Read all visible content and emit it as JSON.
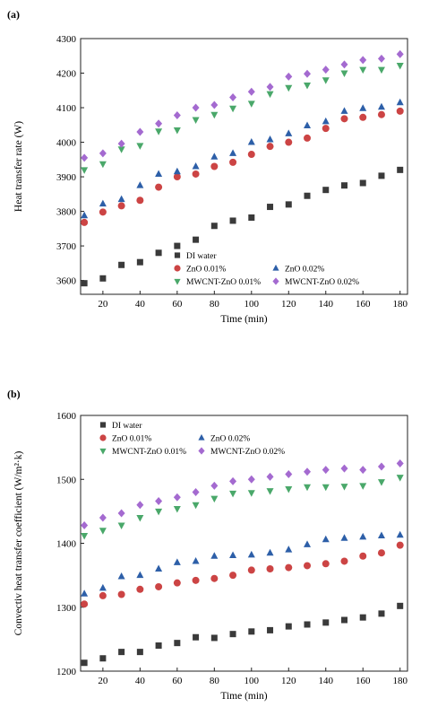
{
  "chart_data": [
    {
      "type": "scatter",
      "panel_label": "(a)",
      "xlabel": "Time (min)",
      "ylabel": "Heat transfer rate (W)",
      "xlim": [
        8,
        184
      ],
      "ylim": [
        3560,
        4300
      ],
      "xticks": [
        20,
        40,
        60,
        80,
        100,
        120,
        140,
        160,
        180
      ],
      "yticks": [
        3600,
        3700,
        3800,
        3900,
        4000,
        4100,
        4200,
        4300
      ],
      "legend_position": "bottom-right",
      "x": [
        10,
        20,
        30,
        40,
        50,
        60,
        70,
        80,
        90,
        100,
        110,
        120,
        130,
        140,
        150,
        160,
        170,
        180
      ],
      "series": [
        {
          "name": "DI water",
          "marker": "square",
          "color": "#3a3a3a",
          "values": [
            3592,
            3606,
            3645,
            3653,
            3680,
            3700,
            3718,
            3758,
            3773,
            3782,
            3813,
            3820,
            3845,
            3862,
            3875,
            3882,
            3903,
            3920
          ]
        },
        {
          "name": "ZnO 0.01%",
          "marker": "circle",
          "color": "#cc4444",
          "values": [
            3768,
            3798,
            3816,
            3832,
            3870,
            3900,
            3908,
            3930,
            3942,
            3965,
            3988,
            4000,
            4012,
            4040,
            4068,
            4072,
            4080,
            4090
          ]
        },
        {
          "name": "ZnO 0.02%",
          "marker": "triangle-up",
          "color": "#2d5fa8",
          "values": [
            3788,
            3822,
            3835,
            3875,
            3908,
            3915,
            3930,
            3958,
            3968,
            4000,
            4008,
            4025,
            4048,
            4060,
            4090,
            4098,
            4102,
            4115
          ]
        },
        {
          "name": "MWCNT-ZnO 0.01%",
          "marker": "triangle-down",
          "color": "#4aa86a",
          "values": [
            3920,
            3937,
            3980,
            3990,
            4032,
            4035,
            4065,
            4080,
            4098,
            4112,
            4140,
            4158,
            4165,
            4180,
            4200,
            4210,
            4210,
            4222
          ]
        },
        {
          "name": "MWCNT-ZnO 0.02%",
          "marker": "diamond",
          "color": "#a46ad0",
          "values": [
            3955,
            3968,
            3996,
            4030,
            4054,
            4078,
            4100,
            4108,
            4130,
            4146,
            4160,
            4190,
            4198,
            4210,
            4225,
            4238,
            4242,
            4255
          ]
        }
      ]
    },
    {
      "type": "scatter",
      "panel_label": "(b)",
      "xlabel": "Time (min)",
      "ylabel": "Convectiv heat transfer coefficient (W/m²·k)",
      "xlim": [
        8,
        184
      ],
      "ylim": [
        1200,
        1600
      ],
      "xticks": [
        20,
        40,
        60,
        80,
        100,
        120,
        140,
        160,
        180
      ],
      "yticks": [
        1200,
        1300,
        1400,
        1500,
        1600
      ],
      "legend_position": "top-left",
      "x": [
        10,
        20,
        30,
        40,
        50,
        60,
        70,
        80,
        90,
        100,
        110,
        120,
        130,
        140,
        150,
        160,
        170,
        180
      ],
      "series": [
        {
          "name": "DI water",
          "marker": "square",
          "color": "#3a3a3a",
          "values": [
            1213,
            1220,
            1230,
            1230,
            1240,
            1244,
            1253,
            1252,
            1258,
            1262,
            1264,
            1270,
            1273,
            1276,
            1280,
            1284,
            1290,
            1302
          ]
        },
        {
          "name": "ZnO 0.01%",
          "marker": "circle",
          "color": "#cc4444",
          "values": [
            1305,
            1318,
            1320,
            1328,
            1332,
            1338,
            1342,
            1345,
            1350,
            1358,
            1360,
            1362,
            1365,
            1368,
            1372,
            1380,
            1385,
            1397
          ]
        },
        {
          "name": "ZnO 0.02%",
          "marker": "triangle-up",
          "color": "#2d5fa8",
          "values": [
            1321,
            1330,
            1348,
            1350,
            1360,
            1370,
            1372,
            1380,
            1381,
            1382,
            1385,
            1390,
            1398,
            1406,
            1408,
            1410,
            1412,
            1413
          ]
        },
        {
          "name": "MWCNT-ZnO 0.01%",
          "marker": "triangle-down",
          "color": "#4aa86a",
          "values": [
            1412,
            1420,
            1428,
            1440,
            1450,
            1454,
            1460,
            1470,
            1478,
            1479,
            1482,
            1485,
            1488,
            1488,
            1489,
            1490,
            1496,
            1503
          ]
        },
        {
          "name": "MWCNT-ZnO 0.02%",
          "marker": "diamond",
          "color": "#a46ad0",
          "values": [
            1428,
            1440,
            1447,
            1460,
            1466,
            1472,
            1480,
            1490,
            1497,
            1500,
            1504,
            1508,
            1512,
            1515,
            1517,
            1515,
            1520,
            1525
          ]
        }
      ]
    }
  ]
}
